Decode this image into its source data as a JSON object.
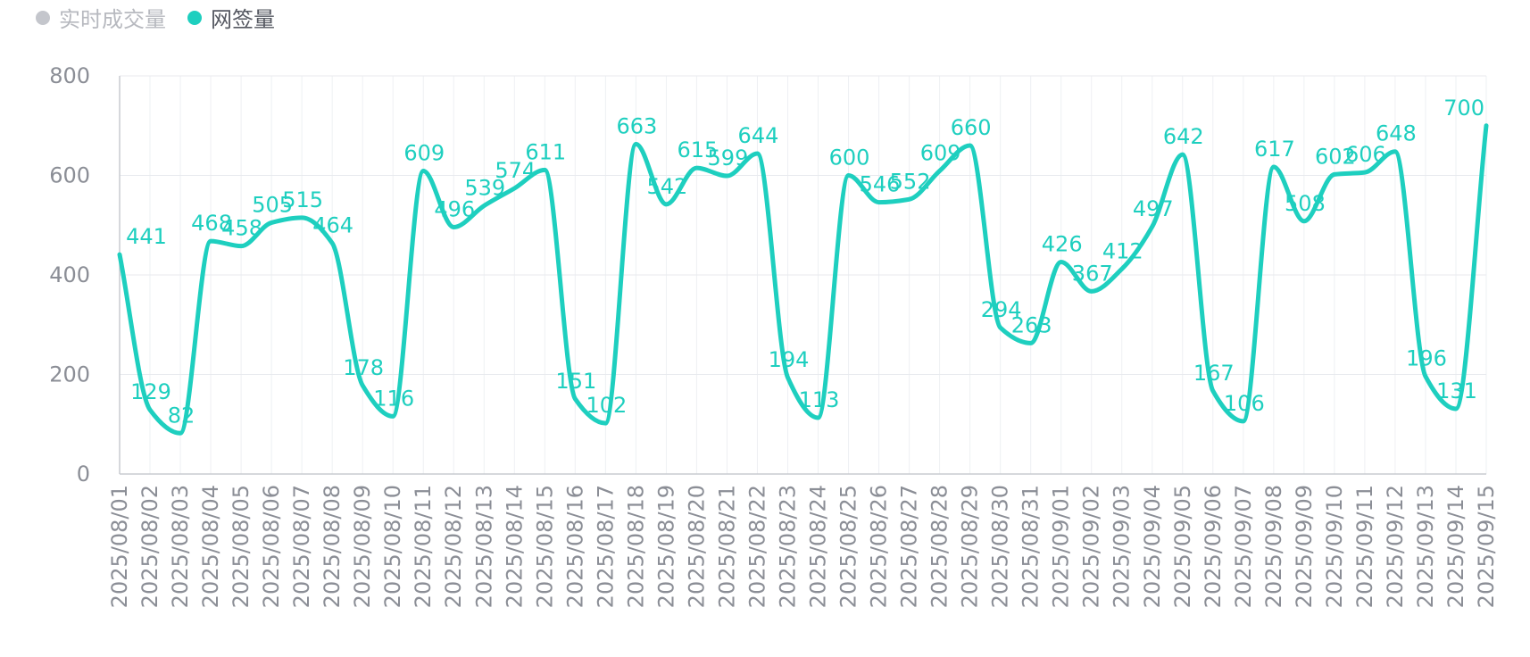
{
  "legend": {
    "items": [
      {
        "label": "实时成交量",
        "color": "#c4c6cc",
        "text_color": "#b7b9bf"
      },
      {
        "label": "网签量",
        "color": "#1ecfbf",
        "text_color": "#555861"
      }
    ]
  },
  "chart_data": {
    "type": "line",
    "title": "",
    "xlabel": "",
    "ylabel": "",
    "ylim": [
      0,
      800
    ],
    "yticks": [
      0,
      200,
      400,
      600,
      800
    ],
    "grid": true,
    "legend_position": "top-left",
    "x": [
      "2025/08/01",
      "2025/08/02",
      "2025/08/03",
      "2025/08/04",
      "2025/08/05",
      "2025/08/06",
      "2025/08/07",
      "2025/08/08",
      "2025/08/09",
      "2025/08/10",
      "2025/08/11",
      "2025/08/12",
      "2025/08/13",
      "2025/08/14",
      "2025/08/15",
      "2025/08/16",
      "2025/08/17",
      "2025/08/18",
      "2025/08/19",
      "2025/08/20",
      "2025/08/21",
      "2025/08/22",
      "2025/08/23",
      "2025/08/24",
      "2025/08/25",
      "2025/08/26",
      "2025/08/27",
      "2025/08/28",
      "2025/08/29",
      "2025/08/30",
      "2025/08/31",
      "2025/09/01",
      "2025/09/02",
      "2025/09/03",
      "2025/09/04",
      "2025/09/05",
      "2025/09/06",
      "2025/09/07",
      "2025/09/08",
      "2025/09/09",
      "2025/09/10",
      "2025/09/11",
      "2025/09/12",
      "2025/09/13",
      "2025/09/14",
      "2025/09/15"
    ],
    "series": [
      {
        "name": "网签量",
        "color": "#1ecfbf",
        "values": [
          441,
          129,
          82,
          468,
          458,
          505,
          515,
          464,
          178,
          116,
          609,
          496,
          539,
          574,
          611,
          151,
          102,
          663,
          542,
          615,
          599,
          644,
          194,
          113,
          600,
          546,
          552,
          609,
          660,
          294,
          263,
          426,
          367,
          412,
          497,
          642,
          167,
          106,
          617,
          508,
          602,
          606,
          648,
          196,
          131,
          700
        ]
      }
    ]
  }
}
